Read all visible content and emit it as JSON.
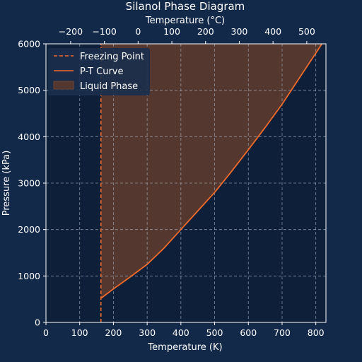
{
  "colors": {
    "figure_bg": "#13294a",
    "axes_bg": "#0e2039",
    "curve": "#f26a2a",
    "liquid_fill": "#54372f",
    "grid": "#a8b3c4",
    "text": "#ffffff"
  },
  "chart_data": {
    "type": "line",
    "title": "Silanol Phase Diagram",
    "xlabel": "Temperature (K)",
    "ylabel": "Pressure (kPa)",
    "x2label": "Temperature (°C)",
    "xlim": [
      0,
      830
    ],
    "ylim": [
      0,
      6000
    ],
    "xticks": [
      0,
      100,
      200,
      300,
      400,
      500,
      600,
      700,
      800
    ],
    "xtick_labels": [
      "0",
      "100",
      "200",
      "300",
      "400",
      "500",
      "600",
      "700",
      "800"
    ],
    "yticks": [
      0,
      1000,
      2000,
      3000,
      4000,
      5000,
      6000
    ],
    "ytick_labels": [
      "0",
      "1000",
      "2000",
      "3000",
      "4000",
      "5000",
      "6000"
    ],
    "x2ticks": [
      -200,
      -100,
      0,
      100,
      200,
      300,
      400,
      500
    ],
    "x2tick_labels": [
      "−200",
      "−100",
      "0",
      "100",
      "200",
      "300",
      "400",
      "500"
    ],
    "grid": true,
    "legend_position": "top-left",
    "series": [
      {
        "name": "Freezing Point",
        "style": "dashed",
        "x": [
          163,
          163
        ],
        "y": [
          0,
          6000
        ]
      },
      {
        "name": "P-T Curve",
        "style": "solid",
        "x": [
          163,
          200,
          250,
          300,
          350,
          400,
          450,
          500,
          550,
          600,
          650,
          700,
          750,
          800,
          818
        ],
        "y": [
          520,
          720,
          980,
          1250,
          1600,
          2000,
          2400,
          2800,
          3250,
          3720,
          4200,
          4700,
          5250,
          5800,
          6000
        ]
      }
    ],
    "fill": {
      "name": "Liquid Phase",
      "between": "P-T Curve and ymax, from Freezing Point"
    }
  }
}
